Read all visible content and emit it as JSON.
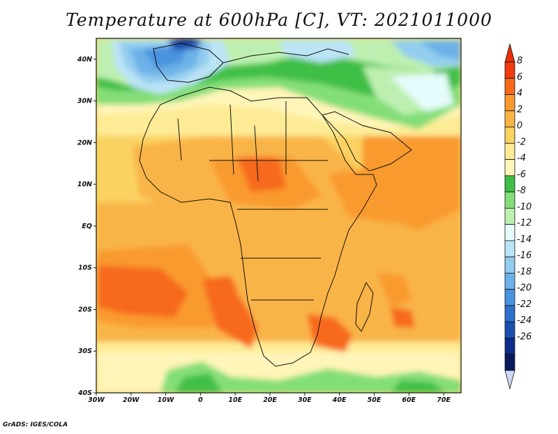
{
  "title": "Temperature at 600hPa [C], VT: 2021011000",
  "credit": "GrADS: IGES/COLA",
  "map": {
    "lon_range": [
      -30,
      75
    ],
    "lat_range": [
      -40,
      45
    ],
    "lon_ticks": [
      {
        "v": -30,
        "label": "30W"
      },
      {
        "v": -20,
        "label": "20W"
      },
      {
        "v": -10,
        "label": "10W"
      },
      {
        "v": 0,
        "label": "0"
      },
      {
        "v": 10,
        "label": "10E"
      },
      {
        "v": 20,
        "label": "20E"
      },
      {
        "v": 30,
        "label": "30E"
      },
      {
        "v": 40,
        "label": "40E"
      },
      {
        "v": 50,
        "label": "50E"
      },
      {
        "v": 60,
        "label": "60E"
      },
      {
        "v": 70,
        "label": "70E"
      }
    ],
    "lat_ticks": [
      {
        "v": 40,
        "label": "40N"
      },
      {
        "v": 30,
        "label": "30N"
      },
      {
        "v": 20,
        "label": "20N"
      },
      {
        "v": 10,
        "label": "10N"
      },
      {
        "v": 0,
        "label": "EQ"
      },
      {
        "v": -10,
        "label": "10S"
      },
      {
        "v": -20,
        "label": "20S"
      },
      {
        "v": -30,
        "label": "30S"
      },
      {
        "v": -40,
        "label": "40S"
      }
    ]
  },
  "colorbar": {
    "levels": [
      "8",
      "6",
      "4",
      "2",
      "0",
      "-2",
      "-4",
      "-6",
      "-8",
      "-10",
      "-12",
      "-14",
      "-16",
      "-18",
      "-20",
      "-22",
      "-24",
      "-26"
    ],
    "colors": [
      "#f03b0f",
      "#f7691a",
      "#f99a2e",
      "#f9b446",
      "#fad262",
      "#fdeb95",
      "#fff5b8",
      "#3fbf46",
      "#84de78",
      "#bdf0b0",
      "#e6fbfb",
      "#bce4f7",
      "#93cdef",
      "#6cb1e8",
      "#4a93df",
      "#2c71cc",
      "#1a50b0",
      "#0e2d8a",
      "#0a1a60"
    ],
    "top_arrow_color": "#e8300d",
    "bottom_arrow_color": "#cfd8f7"
  }
}
